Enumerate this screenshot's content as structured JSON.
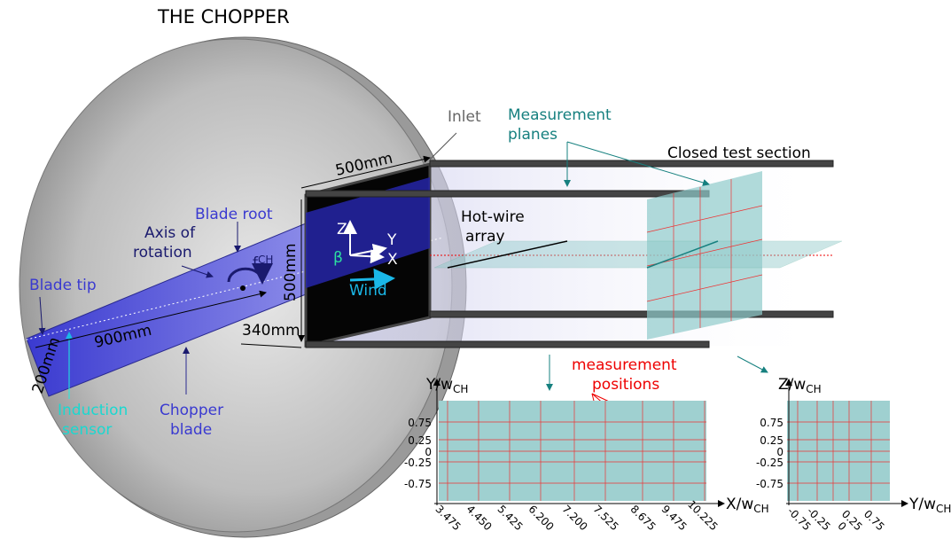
{
  "title": "THE CHOPPER",
  "chopper": {
    "blade_root": "Blade root",
    "axis_of_rotation": [
      "Axis of",
      "rotation"
    ],
    "frequency": {
      "symbol": "f",
      "subscript": "CH"
    },
    "blade_tip": "Blade tip",
    "blade_length": "900mm",
    "blade_width": "200mm",
    "induction_sensor": [
      "Induction",
      "sensor"
    ],
    "chopper_blade": [
      "Chopper",
      "blade"
    ]
  },
  "inlet": {
    "label": "Inlet",
    "width": "500mm",
    "height": "500mm",
    "depth": "340mm",
    "wind": "Wind",
    "axes": {
      "z": "Z",
      "y": "Y",
      "x": "X",
      "angle": "β"
    }
  },
  "test_section": {
    "label": "Closed test section",
    "measurement_planes": [
      "Measurement",
      "planes"
    ],
    "hot_wire_array": [
      "Hot-wire",
      "array"
    ],
    "measurement_positions": [
      "measurement",
      "positions"
    ]
  },
  "plots": [
    {
      "y_label": {
        "text": "Y/w",
        "subscript": "CH"
      },
      "x_label": {
        "text": "X/w",
        "subscript": "CH"
      },
      "yticks": [
        "0.75",
        "0.25",
        "0",
        "-0.25",
        "-0.75"
      ],
      "xticks": [
        "3.475",
        "4.450",
        "5.425",
        "6.200",
        "7.200",
        "7.525",
        "8.675",
        "9.475",
        "10.225"
      ]
    },
    {
      "y_label": {
        "text": "Z/w",
        "subscript": "CH"
      },
      "x_label": {
        "text": "Y/w",
        "subscript": "CH"
      },
      "yticks": [
        "0.75",
        "0.25",
        "0",
        "-0.25",
        "-0.75"
      ],
      "xticks": [
        "-0.75",
        "-0.25",
        "0",
        "0.25",
        "0.75"
      ]
    }
  ]
}
